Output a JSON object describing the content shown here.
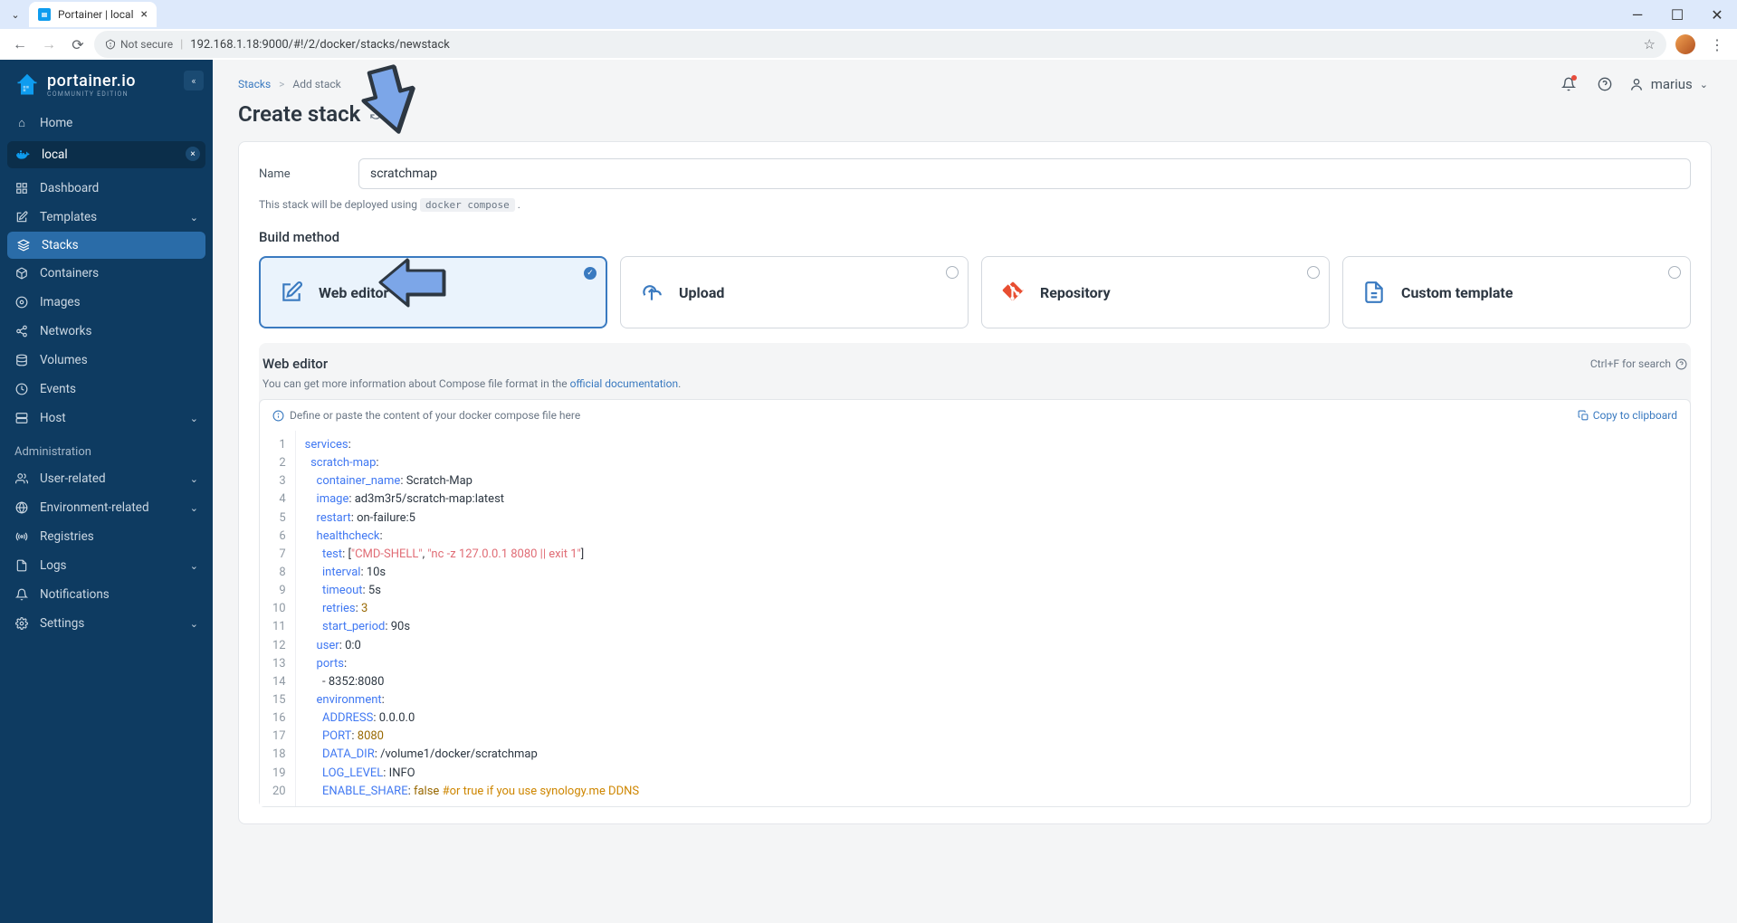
{
  "browser": {
    "tab_title": "Portainer | local",
    "url": "192.168.1.18:9000/#!/2/docker/stacks/newstack",
    "secure_label": "Not secure"
  },
  "logo": {
    "main": "portainer.io",
    "sub": "COMMUNITY EDITION"
  },
  "sidebar": {
    "home": "Home",
    "env": "local",
    "items": [
      {
        "label": "Dashboard",
        "icon": "grid"
      },
      {
        "label": "Templates",
        "icon": "edit",
        "chevron": true
      },
      {
        "label": "Stacks",
        "icon": "layers",
        "active": true
      },
      {
        "label": "Containers",
        "icon": "box"
      },
      {
        "label": "Images",
        "icon": "disc"
      },
      {
        "label": "Networks",
        "icon": "share"
      },
      {
        "label": "Volumes",
        "icon": "database"
      },
      {
        "label": "Events",
        "icon": "clock"
      },
      {
        "label": "Host",
        "icon": "server",
        "chevron": true
      }
    ],
    "admin_section": "Administration",
    "admin": [
      {
        "label": "User-related",
        "icon": "users",
        "chevron": true
      },
      {
        "label": "Environment-related",
        "icon": "globe",
        "chevron": true
      },
      {
        "label": "Registries",
        "icon": "radio"
      },
      {
        "label": "Logs",
        "icon": "file",
        "chevron": true
      },
      {
        "label": "Notifications",
        "icon": "bell"
      },
      {
        "label": "Settings",
        "icon": "gear",
        "chevron": true
      }
    ]
  },
  "breadcrumb": {
    "root": "Stacks",
    "sep": ">",
    "leaf": "Add stack"
  },
  "page_title": "Create stack",
  "user": "marius",
  "form": {
    "name_label": "Name",
    "name_value": "scratchmap",
    "hint_prefix": "This stack will be deployed using ",
    "hint_code": "docker compose",
    "hint_suffix": " ."
  },
  "build_method": {
    "title": "Build method",
    "options": [
      {
        "label": "Web editor",
        "icon_color": "#3a7ac0",
        "selected": true
      },
      {
        "label": "Upload",
        "icon_color": "#3a7ac0"
      },
      {
        "label": "Repository",
        "icon_color": "#e84e31"
      },
      {
        "label": "Custom template",
        "icon_color": "#3a7ac0"
      }
    ]
  },
  "editor": {
    "title": "Web editor",
    "shortcut": "Ctrl+F for search",
    "info_prefix": "You can get more information about Compose file format in the ",
    "info_link": "official documentation",
    "info_suffix": ".",
    "placeholder": "Define or paste the content of your docker compose file here",
    "copy": "Copy to clipboard"
  },
  "code": {
    "lines": [
      [
        {
          "t": "key",
          "v": "services"
        },
        {
          "t": "punct",
          "v": ":"
        }
      ],
      [
        {
          "t": "sp",
          "v": "  "
        },
        {
          "t": "key",
          "v": "scratch-map"
        },
        {
          "t": "punct",
          "v": ":"
        }
      ],
      [
        {
          "t": "sp",
          "v": "    "
        },
        {
          "t": "key",
          "v": "container_name"
        },
        {
          "t": "punct",
          "v": ": "
        },
        {
          "t": "plain",
          "v": "Scratch-Map"
        }
      ],
      [
        {
          "t": "sp",
          "v": "    "
        },
        {
          "t": "key",
          "v": "image"
        },
        {
          "t": "punct",
          "v": ": "
        },
        {
          "t": "plain",
          "v": "ad3m3r5/scratch-map:latest"
        }
      ],
      [
        {
          "t": "sp",
          "v": "    "
        },
        {
          "t": "key",
          "v": "restart"
        },
        {
          "t": "punct",
          "v": ": "
        },
        {
          "t": "plain",
          "v": "on-failure:5"
        }
      ],
      [
        {
          "t": "sp",
          "v": "    "
        },
        {
          "t": "key",
          "v": "healthcheck"
        },
        {
          "t": "punct",
          "v": ":"
        }
      ],
      [
        {
          "t": "sp",
          "v": "      "
        },
        {
          "t": "key",
          "v": "test"
        },
        {
          "t": "punct",
          "v": ": ["
        },
        {
          "t": "strred",
          "v": "\"CMD-SHELL\""
        },
        {
          "t": "punct",
          "v": ", "
        },
        {
          "t": "strred",
          "v": "\"nc -z 127.0.0.1 8080 || exit 1\""
        },
        {
          "t": "punct",
          "v": "]"
        }
      ],
      [
        {
          "t": "sp",
          "v": "      "
        },
        {
          "t": "key",
          "v": "interval"
        },
        {
          "t": "punct",
          "v": ": "
        },
        {
          "t": "plain",
          "v": "10s"
        }
      ],
      [
        {
          "t": "sp",
          "v": "      "
        },
        {
          "t": "key",
          "v": "timeout"
        },
        {
          "t": "punct",
          "v": ": "
        },
        {
          "t": "plain",
          "v": "5s"
        }
      ],
      [
        {
          "t": "sp",
          "v": "      "
        },
        {
          "t": "key",
          "v": "retries"
        },
        {
          "t": "punct",
          "v": ": "
        },
        {
          "t": "num",
          "v": "3"
        }
      ],
      [
        {
          "t": "sp",
          "v": "      "
        },
        {
          "t": "key",
          "v": "start_period"
        },
        {
          "t": "punct",
          "v": ": "
        },
        {
          "t": "plain",
          "v": "90s"
        }
      ],
      [
        {
          "t": "sp",
          "v": "    "
        },
        {
          "t": "key",
          "v": "user"
        },
        {
          "t": "punct",
          "v": ": "
        },
        {
          "t": "plain",
          "v": "0:0"
        }
      ],
      [
        {
          "t": "sp",
          "v": "    "
        },
        {
          "t": "key",
          "v": "ports"
        },
        {
          "t": "punct",
          "v": ":"
        }
      ],
      [
        {
          "t": "sp",
          "v": "      "
        },
        {
          "t": "punct",
          "v": "- "
        },
        {
          "t": "plain",
          "v": "8352:8080"
        }
      ],
      [
        {
          "t": "sp",
          "v": "    "
        },
        {
          "t": "key",
          "v": "environment"
        },
        {
          "t": "punct",
          "v": ":"
        }
      ],
      [
        {
          "t": "sp",
          "v": "      "
        },
        {
          "t": "key",
          "v": "ADDRESS"
        },
        {
          "t": "punct",
          "v": ": "
        },
        {
          "t": "plain",
          "v": "0.0.0.0"
        }
      ],
      [
        {
          "t": "sp",
          "v": "      "
        },
        {
          "t": "key",
          "v": "PORT"
        },
        {
          "t": "punct",
          "v": ": "
        },
        {
          "t": "num",
          "v": "8080"
        }
      ],
      [
        {
          "t": "sp",
          "v": "      "
        },
        {
          "t": "key",
          "v": "DATA_DIR"
        },
        {
          "t": "punct",
          "v": ": "
        },
        {
          "t": "plain",
          "v": "/volume1/docker/scratchmap"
        }
      ],
      [
        {
          "t": "sp",
          "v": "      "
        },
        {
          "t": "key",
          "v": "LOG_LEVEL"
        },
        {
          "t": "punct",
          "v": ": "
        },
        {
          "t": "plain",
          "v": "INFO"
        }
      ],
      [
        {
          "t": "sp",
          "v": "      "
        },
        {
          "t": "key",
          "v": "ENABLE_SHARE"
        },
        {
          "t": "punct",
          "v": ": "
        },
        {
          "t": "bool",
          "v": "false"
        },
        {
          "t": "sp",
          "v": " "
        },
        {
          "t": "comment",
          "v": "#or true if you use synology.me DDNS"
        }
      ]
    ]
  },
  "colors": {
    "sidebar_bg": "#0e3b61",
    "accent": "#3a7ac0",
    "arrow_fill": "#7ca6e8",
    "arrow_stroke": "#2d3742"
  }
}
